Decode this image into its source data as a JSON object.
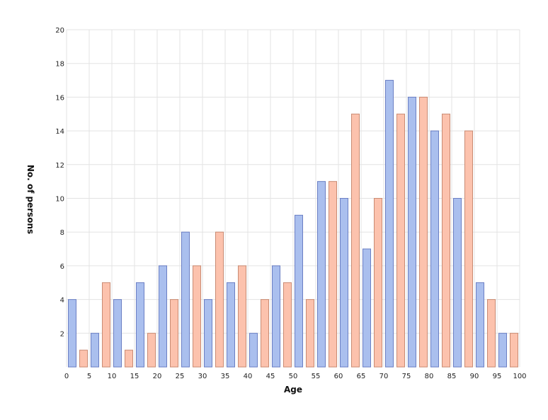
{
  "chart_data": {
    "type": "bar",
    "title": "",
    "xlabel": "Age",
    "ylabel": "No. of persons",
    "xlim": [
      0,
      100
    ],
    "ylim": [
      0,
      20
    ],
    "x_ticks": [
      0,
      5,
      10,
      15,
      20,
      25,
      30,
      35,
      40,
      45,
      50,
      55,
      60,
      65,
      70,
      75,
      80,
      85,
      90,
      95,
      100
    ],
    "y_ticks": [
      2,
      4,
      6,
      8,
      10,
      12,
      14,
      16,
      18,
      20
    ],
    "grid": true,
    "legend": "none",
    "colors": {
      "blue_fill": "#aabfee",
      "blue_stroke": "#6b7fc4",
      "orange_fill": "#fcc2ad",
      "orange_stroke": "#c98b73"
    },
    "bars": [
      {
        "x": 1.25,
        "y": 4,
        "series": "blue"
      },
      {
        "x": 3.75,
        "y": 1,
        "series": "orange"
      },
      {
        "x": 6.25,
        "y": 2,
        "series": "blue"
      },
      {
        "x": 8.75,
        "y": 5,
        "series": "orange"
      },
      {
        "x": 11.25,
        "y": 4,
        "series": "blue"
      },
      {
        "x": 13.75,
        "y": 1,
        "series": "orange"
      },
      {
        "x": 16.25,
        "y": 5,
        "series": "blue"
      },
      {
        "x": 18.75,
        "y": 2,
        "series": "orange"
      },
      {
        "x": 21.25,
        "y": 6,
        "series": "blue"
      },
      {
        "x": 23.75,
        "y": 4,
        "series": "orange"
      },
      {
        "x": 26.25,
        "y": 8,
        "series": "blue"
      },
      {
        "x": 28.75,
        "y": 6,
        "series": "orange"
      },
      {
        "x": 31.25,
        "y": 4,
        "series": "blue"
      },
      {
        "x": 33.75,
        "y": 8,
        "series": "orange"
      },
      {
        "x": 36.25,
        "y": 5,
        "series": "blue"
      },
      {
        "x": 38.75,
        "y": 6,
        "series": "orange"
      },
      {
        "x": 41.25,
        "y": 2,
        "series": "blue"
      },
      {
        "x": 43.75,
        "y": 4,
        "series": "orange"
      },
      {
        "x": 46.25,
        "y": 6,
        "series": "blue"
      },
      {
        "x": 48.75,
        "y": 5,
        "series": "orange"
      },
      {
        "x": 51.25,
        "y": 9,
        "series": "blue"
      },
      {
        "x": 53.75,
        "y": 4,
        "series": "orange"
      },
      {
        "x": 56.25,
        "y": 11,
        "series": "blue"
      },
      {
        "x": 58.75,
        "y": 11,
        "series": "orange"
      },
      {
        "x": 61.25,
        "y": 10,
        "series": "blue"
      },
      {
        "x": 63.75,
        "y": 15,
        "series": "orange"
      },
      {
        "x": 66.25,
        "y": 7,
        "series": "blue"
      },
      {
        "x": 68.75,
        "y": 10,
        "series": "orange"
      },
      {
        "x": 71.25,
        "y": 17,
        "series": "blue"
      },
      {
        "x": 73.75,
        "y": 15,
        "series": "orange"
      },
      {
        "x": 76.25,
        "y": 16,
        "series": "blue"
      },
      {
        "x": 78.75,
        "y": 16,
        "series": "orange"
      },
      {
        "x": 81.25,
        "y": 14,
        "series": "blue"
      },
      {
        "x": 83.75,
        "y": 15,
        "series": "orange"
      },
      {
        "x": 86.25,
        "y": 10,
        "series": "blue"
      },
      {
        "x": 88.75,
        "y": 14,
        "series": "orange"
      },
      {
        "x": 91.25,
        "y": 5,
        "series": "blue"
      },
      {
        "x": 93.75,
        "y": 4,
        "series": "orange"
      },
      {
        "x": 96.25,
        "y": 2,
        "series": "blue"
      },
      {
        "x": 98.75,
        "y": 2,
        "series": "orange"
      }
    ]
  }
}
